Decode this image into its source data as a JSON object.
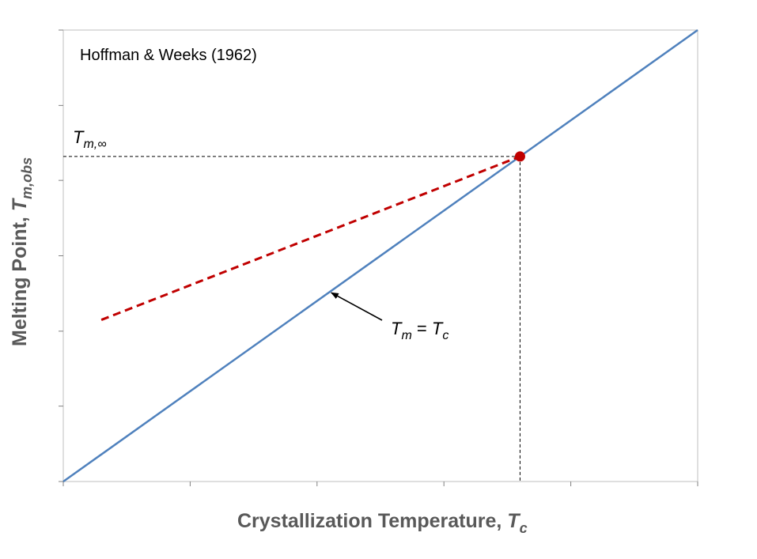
{
  "chart_data": {
    "type": "line",
    "title": "",
    "annotation_title": "Hoffman & Weeks (1962)",
    "xlabel": {
      "prefix": "Crystallization Temperature, ",
      "symbol": "T",
      "subscript": "c"
    },
    "ylabel": {
      "prefix": "Melting Point, ",
      "symbol": "T",
      "subscript": "m,obs"
    },
    "xlim": [
      0,
      1
    ],
    "ylim": [
      0,
      1
    ],
    "x_ticks": [
      0,
      0.2,
      0.4,
      0.6,
      0.8,
      1.0
    ],
    "y_ticks": [
      0,
      0.167,
      0.333,
      0.5,
      0.667,
      0.833,
      1.0
    ],
    "tick_labels_shown": false,
    "grid": false,
    "legend": "none",
    "series": [
      {
        "name": "Tm = Tc",
        "style": "solid",
        "color": "#4f81bd",
        "x": [
          0,
          1
        ],
        "y": [
          0,
          1
        ]
      },
      {
        "style": "dashed",
        "color": "#c00000",
        "x": [
          0.06,
          0.72
        ],
        "y": [
          0.358,
          0.72
        ]
      }
    ],
    "intersection_point": {
      "x": 0.72,
      "y": 0.72,
      "color": "#c00000"
    },
    "annotations": {
      "tm_inf": {
        "symbol": "T",
        "subscript": "m,∞"
      },
      "line_label": {
        "lhs_symbol": "T",
        "lhs_subscript": "m",
        "equals": " = ",
        "rhs_symbol": "T",
        "rhs_subscript": "c",
        "points_to_x": 0.42
      }
    }
  }
}
